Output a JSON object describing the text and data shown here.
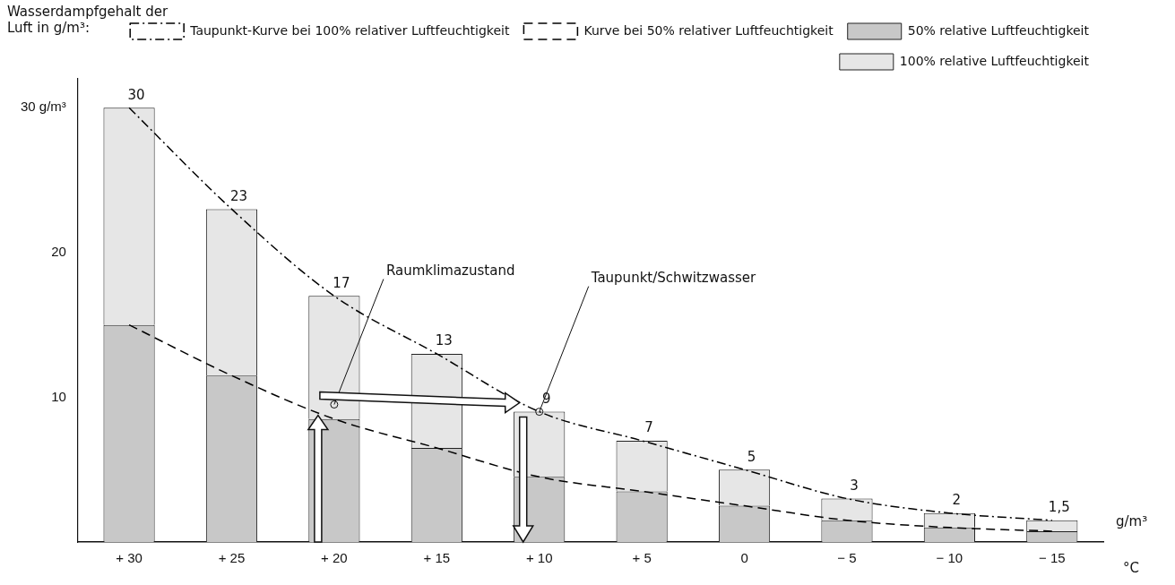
{
  "chart_data": {
    "type": "bar",
    "ylabel": "Wasserdampfgehalt der Luft in g/m³:",
    "xlabel": "°C",
    "categories": [
      "+ 30",
      "+ 25",
      "+ 20",
      "+ 15",
      "+ 10",
      "+ 5",
      "0",
      "− 5",
      "− 10",
      "− 15"
    ],
    "stacked": true,
    "series": [
      {
        "name": "50% relative Luftfeuchtigkeit",
        "color": "#c8c8c8",
        "values": [
          15,
          11.5,
          8.5,
          6.5,
          4.5,
          3.5,
          2.5,
          1.5,
          1,
          0.75
        ]
      },
      {
        "name": "100% relative Luftfeuchtigkeit",
        "color": "#e6e6e6",
        "values": [
          15,
          11.5,
          8.5,
          6.5,
          4.5,
          3.5,
          2.5,
          1.5,
          1,
          0.75
        ]
      },
      {
        "name": "Taupunkt-Kurve bei 100% relativer Luftfeuchtigkeit",
        "type": "line",
        "line_style": "dashdot",
        "color": "#000000",
        "values": [
          30,
          23,
          17,
          13,
          9,
          7,
          5,
          3,
          2,
          1.5
        ]
      },
      {
        "name": "Kurve bei 50% relativer Luftfeuchtigkeit",
        "type": "line",
        "line_style": "dashed",
        "color": "#000000",
        "values": [
          15,
          11.5,
          8.5,
          6.5,
          4.5,
          3.5,
          2.5,
          1.5,
          1,
          0.75
        ]
      }
    ],
    "totals": [
      "30",
      "23",
      "17",
      "13",
      "9",
      "7",
      "5",
      "3",
      "2",
      "1,5"
    ],
    "ylim": [
      0,
      32
    ],
    "yticks": [
      10,
      20,
      {
        "value": 30,
        "label": "30 g/m³"
      }
    ],
    "annotations": [
      {
        "text": "Raumklimazustand",
        "x": "+ 20",
        "y": 9.5
      },
      {
        "text": "Taupunkt/Schwitzwasser",
        "x": "+ 10",
        "y": 9
      },
      "g/m³"
    ],
    "grid": false,
    "legend": "top right",
    "marker": "none"
  }
}
